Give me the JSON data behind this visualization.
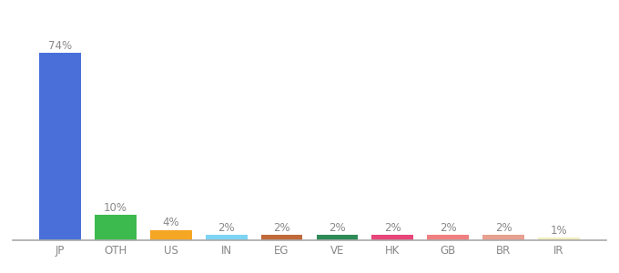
{
  "categories": [
    "JP",
    "OTH",
    "US",
    "IN",
    "EG",
    "VE",
    "HK",
    "GB",
    "BR",
    "IR"
  ],
  "values": [
    74,
    10,
    4,
    2,
    2,
    2,
    2,
    2,
    2,
    1
  ],
  "bar_colors": [
    "#4a6fd8",
    "#3dba4e",
    "#f5a623",
    "#7dd4f5",
    "#c0693a",
    "#2e8b57",
    "#e8457a",
    "#f08080",
    "#e8a090",
    "#f0eec0"
  ],
  "labels": [
    "74%",
    "10%",
    "4%",
    "2%",
    "2%",
    "2%",
    "2%",
    "2%",
    "2%",
    "1%"
  ],
  "ylim": [
    0,
    82
  ],
  "background_color": "#ffffff",
  "label_fontsize": 8.5,
  "tick_fontsize": 8.5,
  "bar_width": 0.75
}
